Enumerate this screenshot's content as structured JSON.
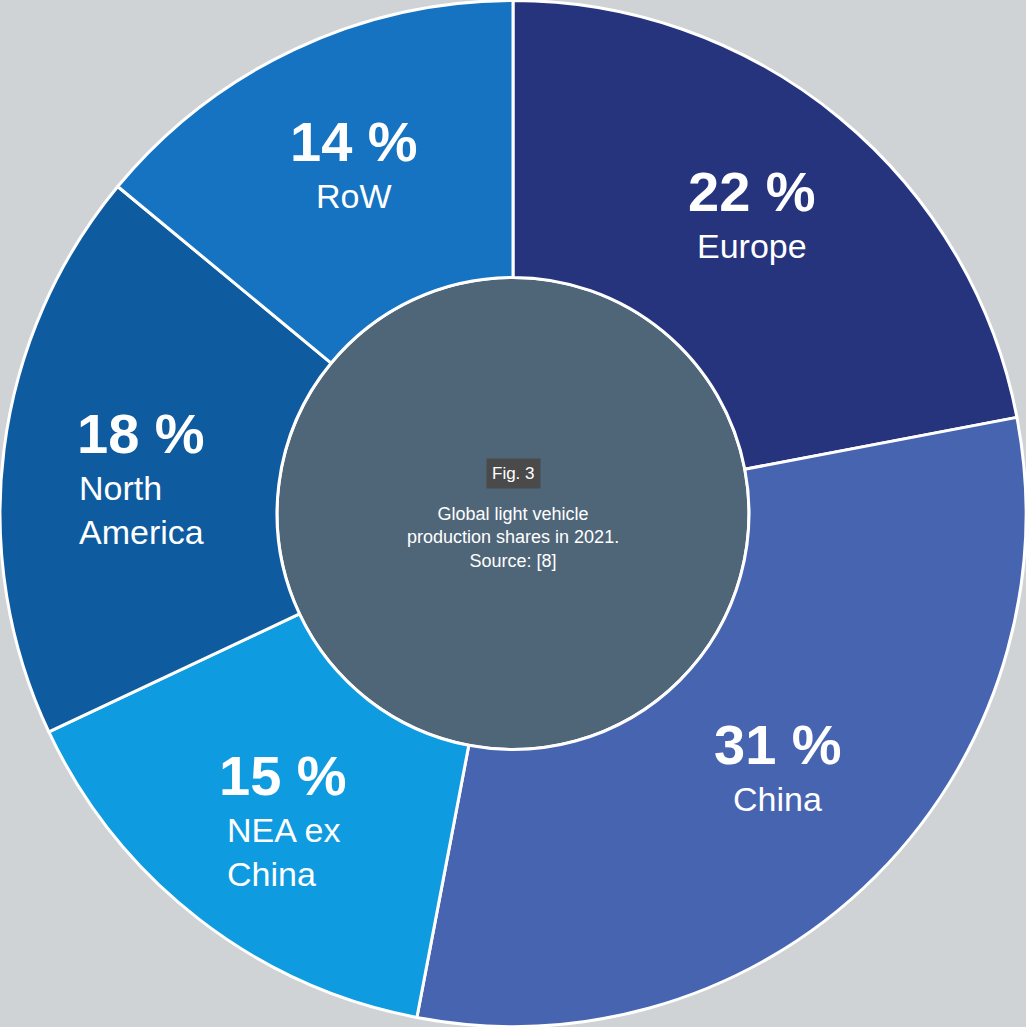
{
  "chart_data": {
    "type": "pie",
    "categories": [
      "Europe",
      "China",
      "NEA ex China",
      "North America",
      "RoW"
    ],
    "values": [
      22,
      31,
      15,
      18,
      14
    ],
    "value_labels": [
      "22 %",
      "31 %",
      "15 %",
      "18 %",
      "14 %"
    ],
    "colors": [
      "#26337d",
      "#4764b0",
      "#0f9be0",
      "#0e5b9f",
      "#1573c2"
    ],
    "data_labels": true,
    "annotations": [
      "Fig. 3",
      "Global light vehicle production shares in 2021. Source: [8]"
    ]
  }
}
